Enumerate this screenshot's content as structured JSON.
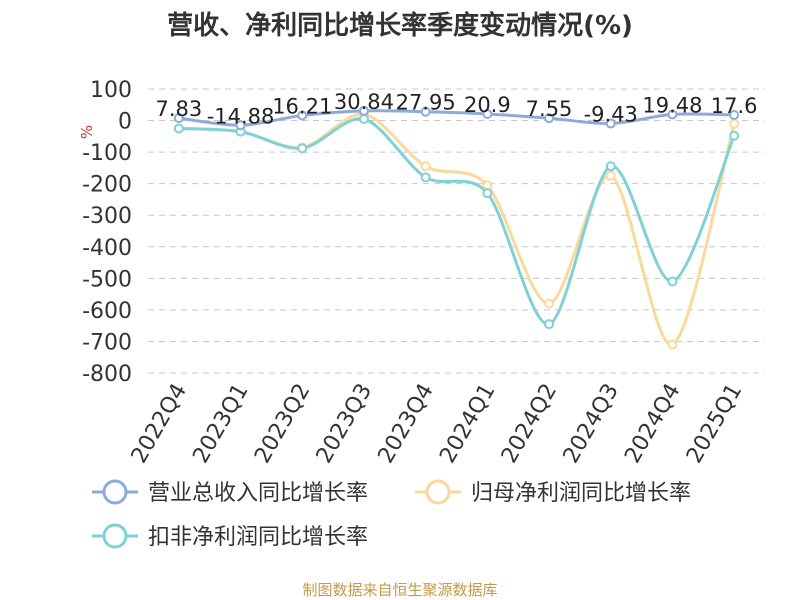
{
  "chart_data": {
    "type": "line",
    "title": "营收、净利同比增长率季度变动情况(%)",
    "ylabel": "%",
    "ylim": [
      -800,
      100
    ],
    "yticks": [
      100,
      0,
      -100,
      -200,
      -300,
      -400,
      -500,
      -600,
      -700,
      -800
    ],
    "categories": [
      "2022Q4",
      "2023Q1",
      "2023Q2",
      "2023Q3",
      "2023Q4",
      "2024Q1",
      "2024Q2",
      "2024Q3",
      "2024Q4",
      "2025Q1"
    ],
    "grid": "horizontal dashed",
    "legend_position": "bottom",
    "series": [
      {
        "name": "营业总收入同比增长率",
        "color": "#8eaadb",
        "values": [
          7.83,
          -14.88,
          16.21,
          30.84,
          27.95,
          20.9,
          7.55,
          -9.43,
          19.48,
          17.6
        ],
        "labels": [
          "7.83",
          "-14.88",
          "16.21",
          "30.84",
          "27.95",
          "20.9",
          "7.55",
          "-9.43",
          "19.48",
          "17.6"
        ]
      },
      {
        "name": "归母净利润同比增长率",
        "color": "#fbd89b",
        "values": [
          -25,
          -35,
          -85,
          20,
          -145,
          -205,
          -580,
          -175,
          -710,
          -10
        ]
      },
      {
        "name": "扣非净利润同比增长率",
        "color": "#7fd1d8",
        "values": [
          -25,
          -35,
          -88,
          5,
          -180,
          -230,
          -645,
          -145,
          -510,
          -48
        ]
      }
    ]
  },
  "source_note": "制图数据来自恒生聚源数据库"
}
